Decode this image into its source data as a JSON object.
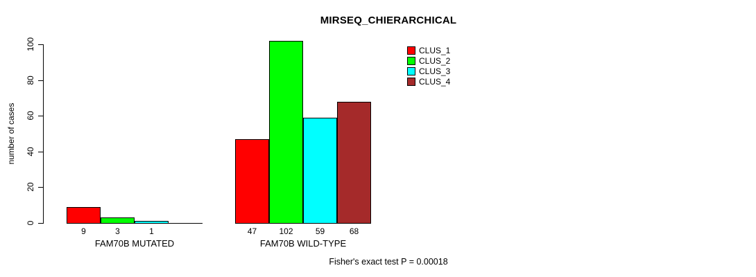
{
  "chart_data": {
    "type": "bar",
    "title": "MIRSEQ_CHIERARCHICAL",
    "xlabel": "",
    "ylabel": "number of cases",
    "ylim": [
      0,
      100
    ],
    "yticks": [
      0,
      20,
      40,
      60,
      80,
      100
    ],
    "grid": false,
    "legend_position": "top-right",
    "series": [
      "CLUS_1",
      "CLUS_2",
      "CLUS_3",
      "CLUS_4"
    ],
    "colors": [
      "#FF0000",
      "#00FF00",
      "#00FFFF",
      "#A52A2A"
    ],
    "groups": [
      {
        "label": "FAM70B MUTATED",
        "values": [
          9,
          3,
          1,
          0
        ],
        "value_labels": [
          "9",
          "3",
          "1",
          ""
        ]
      },
      {
        "label": "FAM70B WILD-TYPE",
        "values": [
          47,
          102,
          59,
          68
        ],
        "value_labels": [
          "47",
          "102",
          "59",
          "68"
        ]
      }
    ],
    "annotation": "Fisher's exact test P = 0.00018"
  },
  "legend": {
    "items": [
      {
        "label": "CLUS_1",
        "color": "#FF0000"
      },
      {
        "label": "CLUS_2",
        "color": "#00FF00"
      },
      {
        "label": "CLUS_3",
        "color": "#00FFFF"
      },
      {
        "label": "CLUS_4",
        "color": "#A52A2A"
      }
    ]
  }
}
